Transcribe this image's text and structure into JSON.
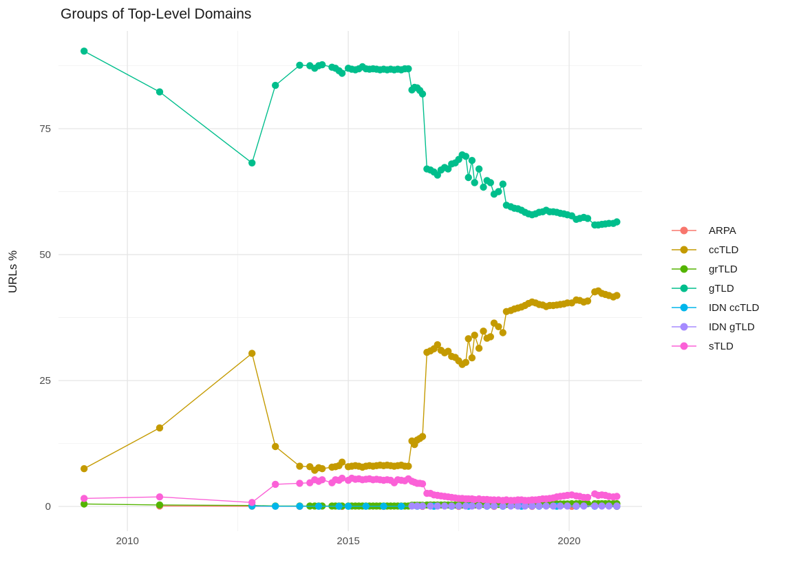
{
  "chart": {
    "title": "Groups of Top-Level Domains",
    "ylabel": "URLs %",
    "xlabel": ""
  },
  "chart_data": {
    "type": "line",
    "title": "Groups of Top-Level Domains",
    "xlabel": "",
    "ylabel": "URLs %",
    "xlim": [
      2008.44,
      2021.65
    ],
    "ylim": [
      -4.9,
      94.4
    ],
    "x_breaks": [
      2010,
      2015,
      2020
    ],
    "x_minor_breaks": [
      2012.5,
      2017.5
    ],
    "y_breaks": [
      0,
      25,
      50,
      75
    ],
    "y_minor_breaks": [
      12.5,
      37.5,
      62.5,
      87.5
    ],
    "grid": true,
    "legend_position": "right",
    "x_main": [
      2009.02,
      2010.73,
      2012.82,
      2013.35,
      2013.9,
      2014.13,
      2014.24,
      2014.33,
      2014.41,
      2014.63,
      2014.71,
      2014.79,
      2014.86,
      2015.0,
      2015.08,
      2015.16,
      2015.24,
      2015.32,
      2015.4,
      2015.48,
      2015.56,
      2015.64,
      2015.72,
      2015.8,
      2015.88,
      2015.96,
      2016.04,
      2016.12,
      2016.2,
      2016.28,
      2016.36,
      2016.44,
      2016.5,
      2016.56,
      2016.62,
      2016.68,
      2016.78,
      2016.86,
      2016.94,
      2017.02,
      2017.1,
      2017.18,
      2017.26,
      2017.34,
      2017.42,
      2017.5,
      2017.58,
      2017.66,
      2017.72,
      2017.8,
      2017.86,
      2017.96,
      2018.06,
      2018.14,
      2018.22,
      2018.3,
      2018.4,
      2018.5,
      2018.58,
      2018.68,
      2018.76,
      2018.84,
      2018.92,
      2019.0,
      2019.08,
      2019.16,
      2019.24,
      2019.32,
      2019.4,
      2019.48,
      2019.56,
      2019.64,
      2019.72,
      2019.8,
      2019.88,
      2019.96,
      2020.06,
      2020.16,
      2020.24,
      2020.33,
      2020.42,
      2020.58,
      2020.66,
      2020.74,
      2020.82,
      2020.9,
      2021.0,
      2021.08
    ],
    "series": [
      {
        "name": "ARPA",
        "color": "#F8766D",
        "x": [
          2010.73,
          2012.82,
          2013.9,
          2014.86,
          2015.8,
          2016.68,
          2017.5,
          2018.3,
          2019.16,
          2020.06,
          2021.08
        ],
        "y": [
          0.1,
          0.05,
          0.03,
          0.03,
          0.03,
          0.03,
          0.03,
          0.03,
          0.03,
          0.03,
          0.03
        ]
      },
      {
        "name": "ccTLD",
        "color": "#C49A00",
        "y": [
          7.5,
          15.6,
          30.4,
          11.9,
          8.0,
          7.9,
          7.2,
          7.7,
          7.5,
          7.8,
          7.9,
          8.1,
          8.8,
          7.9,
          8.0,
          8.1,
          8.0,
          7.8,
          8.0,
          8.1,
          8.0,
          8.1,
          8.2,
          8.1,
          8.2,
          8.1,
          8.0,
          8.1,
          8.2,
          8.0,
          8.0,
          13.0,
          12.3,
          13.2,
          13.5,
          13.9,
          30.6,
          30.9,
          31.3,
          32.1,
          31.0,
          30.5,
          30.8,
          29.8,
          29.6,
          28.9,
          28.2,
          28.6,
          33.3,
          29.5,
          34.0,
          31.4,
          34.8,
          33.4,
          33.7,
          36.4,
          35.7,
          34.5,
          38.7,
          38.9,
          39.2,
          39.4,
          39.6,
          39.9,
          40.3,
          40.6,
          40.4,
          40.1,
          40.0,
          39.7,
          39.9,
          39.9,
          40.0,
          40.1,
          40.2,
          40.4,
          40.4,
          41.0,
          40.9,
          40.6,
          40.8,
          42.6,
          42.8,
          42.3,
          42.1,
          41.9,
          41.6,
          41.9
        ]
      },
      {
        "name": "grTLD",
        "color": "#53B400",
        "y": [
          0.5,
          0.3,
          0.2,
          0.1,
          0.1,
          0.1,
          0.1,
          0.1,
          0.1,
          0.1,
          0.1,
          0.1,
          0.1,
          0.1,
          0.1,
          0.1,
          0.1,
          0.1,
          0.1,
          0.1,
          0.1,
          0.1,
          0.1,
          0.1,
          0.1,
          0.1,
          0.1,
          0.1,
          0.1,
          0.1,
          0.1,
          0.25,
          0.25,
          0.25,
          0.25,
          0.25,
          0.3,
          0.3,
          0.3,
          0.3,
          0.3,
          0.3,
          0.3,
          0.3,
          0.3,
          0.3,
          0.3,
          0.3,
          0.3,
          0.3,
          0.3,
          0.3,
          0.4,
          0.4,
          0.4,
          0.4,
          0.4,
          0.4,
          0.4,
          0.4,
          0.4,
          0.4,
          0.4,
          0.5,
          0.5,
          0.5,
          0.5,
          0.5,
          0.5,
          0.5,
          0.5,
          0.5,
          0.5,
          0.5,
          0.5,
          0.5,
          0.55,
          0.55,
          0.55,
          0.55,
          0.55,
          0.55,
          0.55,
          0.55,
          0.55,
          0.55,
          0.55,
          0.55
        ]
      },
      {
        "name": "gTLD",
        "color": "#00BE8C",
        "y": [
          90.4,
          82.3,
          68.2,
          83.6,
          87.6,
          87.5,
          87.0,
          87.5,
          87.7,
          87.2,
          87.0,
          86.5,
          86.0,
          87.0,
          86.8,
          86.7,
          86.9,
          87.3,
          86.9,
          86.8,
          86.9,
          86.8,
          86.7,
          86.8,
          86.7,
          86.8,
          86.7,
          86.8,
          86.7,
          86.9,
          86.9,
          82.7,
          83.2,
          83.1,
          82.6,
          81.9,
          67.0,
          66.8,
          66.4,
          65.8,
          66.8,
          67.3,
          67.0,
          68.0,
          68.2,
          68.9,
          69.8,
          69.5,
          65.3,
          68.7,
          64.3,
          67.0,
          63.4,
          64.7,
          64.3,
          62.0,
          62.5,
          64.0,
          59.8,
          59.5,
          59.2,
          59.1,
          58.8,
          58.4,
          58.1,
          57.9,
          58.1,
          58.4,
          58.5,
          58.8,
          58.5,
          58.5,
          58.4,
          58.2,
          58.1,
          57.9,
          57.7,
          57.0,
          57.2,
          57.4,
          57.2,
          55.9,
          55.9,
          56.0,
          56.1,
          56.2,
          56.2,
          56.5
        ]
      },
      {
        "name": "IDN ccTLD",
        "color": "#00B6EB",
        "x": [
          2012.82,
          2013.35,
          2013.9,
          2014.33,
          2014.79,
          2015.0,
          2015.4,
          2015.8,
          2016.2,
          2016.56,
          2016.94,
          2017.34,
          2017.72,
          2018.14,
          2018.5,
          2018.92,
          2019.32,
          2019.72,
          2020.16,
          2020.58,
          2021.08
        ],
        "y": [
          0.1,
          0.05,
          0.05,
          0.05,
          0.05,
          0.05,
          0.05,
          0.05,
          0.05,
          0.05,
          0.05,
          0.05,
          0.05,
          0.05,
          0.05,
          0.05,
          0.05,
          0.05,
          0.05,
          0.05,
          0.05
        ]
      },
      {
        "name": "IDN gTLD",
        "color": "#A58AFF",
        "x": [
          2016.44,
          2016.56,
          2016.68,
          2016.86,
          2017.02,
          2017.18,
          2017.34,
          2017.5,
          2017.66,
          2017.8,
          2017.96,
          2018.14,
          2018.3,
          2018.5,
          2018.68,
          2018.84,
          2019.0,
          2019.16,
          2019.32,
          2019.48,
          2019.64,
          2019.8,
          2019.96,
          2020.16,
          2020.33,
          2020.58,
          2020.74,
          2020.9,
          2021.08
        ],
        "y": [
          0.1,
          0.1,
          0.1,
          0.1,
          0.1,
          0.1,
          0.1,
          0.1,
          0.1,
          0.1,
          0.1,
          0.1,
          0.1,
          0.1,
          0.1,
          0.1,
          0.1,
          0.1,
          0.1,
          0.1,
          0.1,
          0.1,
          0.1,
          0.1,
          0.1,
          0.1,
          0.1,
          0.1,
          0.1
        ]
      },
      {
        "name": "sTLD",
        "color": "#FB61D7",
        "y": [
          1.6,
          1.9,
          0.8,
          4.4,
          4.6,
          4.7,
          5.3,
          5.0,
          5.3,
          4.7,
          5.3,
          5.2,
          5.6,
          5.2,
          5.6,
          5.4,
          5.5,
          5.3,
          5.4,
          5.5,
          5.3,
          5.4,
          5.3,
          5.2,
          5.3,
          5.2,
          4.7,
          5.3,
          5.2,
          5.1,
          5.5,
          5.0,
          4.8,
          4.6,
          4.6,
          4.5,
          2.6,
          2.6,
          2.3,
          2.2,
          2.1,
          2.0,
          1.9,
          1.8,
          1.7,
          1.6,
          1.6,
          1.5,
          1.5,
          1.5,
          1.4,
          1.5,
          1.4,
          1.4,
          1.3,
          1.3,
          1.3,
          1.2,
          1.3,
          1.2,
          1.2,
          1.3,
          1.3,
          1.2,
          1.2,
          1.3,
          1.3,
          1.4,
          1.5,
          1.5,
          1.6,
          1.7,
          1.9,
          2.0,
          2.1,
          2.2,
          2.3,
          2.1,
          2.0,
          1.8,
          1.8,
          2.5,
          2.2,
          2.3,
          2.2,
          2.0,
          1.9,
          2.0
        ]
      }
    ],
    "style": {
      "grid_major_color": "#e5e5e5",
      "grid_minor_color": "#f0f0f0",
      "background": "#ffffff",
      "point_radius": 5.2,
      "line_width": 1.4
    }
  }
}
